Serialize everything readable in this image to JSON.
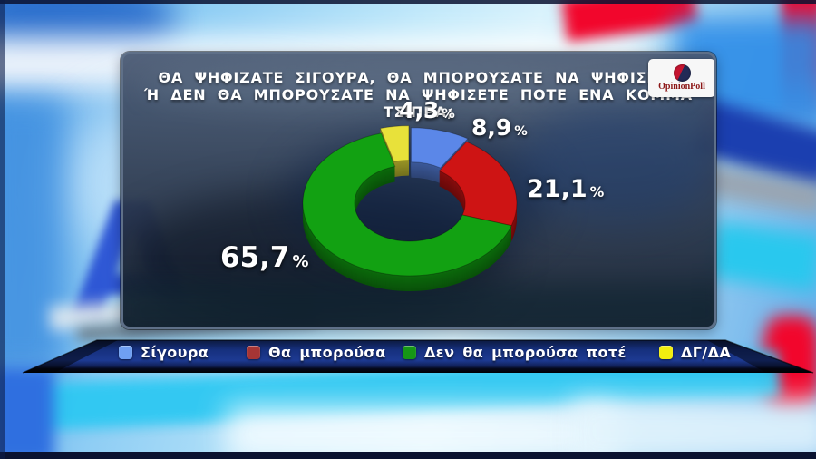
{
  "header": {
    "title_line1": "ΘΑ ΨΗΦΙΖΑΤΕ ΣΙΓΟΥΡΑ, ΘΑ ΜΠΟΡΟΥΣΑΤΕ ΝΑ ΨΗΦΙΣΕΤΕ",
    "title_line2": "Ή ΔΕΝ ΘΑ ΜΠΟΡΟΥΣΑΤΕ ΝΑ ΨΗΦΙΣΕΤΕ ΠΟΤΕ ΕΝΑ ΚΟΜΜΑ ΤΣΙΠΡΑ;",
    "logo_text": "OpinionPoll"
  },
  "background": {
    "brand_letter": "A"
  },
  "chart_data": {
    "type": "pie",
    "donut": true,
    "title": "ΘΑ ΨΗΦΙΖΑΤΕ ΣΙΓΟΥΡΑ, ΘΑ ΜΠΟΡΟΥΣΑΤΕ ΝΑ ΨΗΦΙΣΕΤΕ Ή ΔΕΝ ΘΑ ΜΠΟΡΟΥΣΑΤΕ ΝΑ ΨΗΦΙΣΕΤΕ ΠΟΤΕ ΕΝΑ ΚΟΜΜΑ ΤΣΙΠΡΑ;",
    "start_angle_deg": 0,
    "clockwise": true,
    "percent_symbol": "%",
    "legend_position": "bottom",
    "slices": [
      {
        "label": "Σίγουρα",
        "value": 8.9,
        "display": "8,9",
        "color": "#5b87e8",
        "legend_color": "#6f9ff2"
      },
      {
        "label": "Θα μπορούσα",
        "value": 21.1,
        "display": "21,1",
        "color": "#ce1414",
        "legend_color": "#a63535"
      },
      {
        "label": "Δεν θα μπορούσα ποτέ",
        "value": 65.7,
        "display": "65,7",
        "color": "#12a112",
        "legend_color": "#169616"
      },
      {
        "label": "ΔΓ/ΔΑ",
        "value": 4.3,
        "display": "4,3",
        "color": "#e8e13a",
        "legend_color": "#f2ee10"
      }
    ]
  }
}
